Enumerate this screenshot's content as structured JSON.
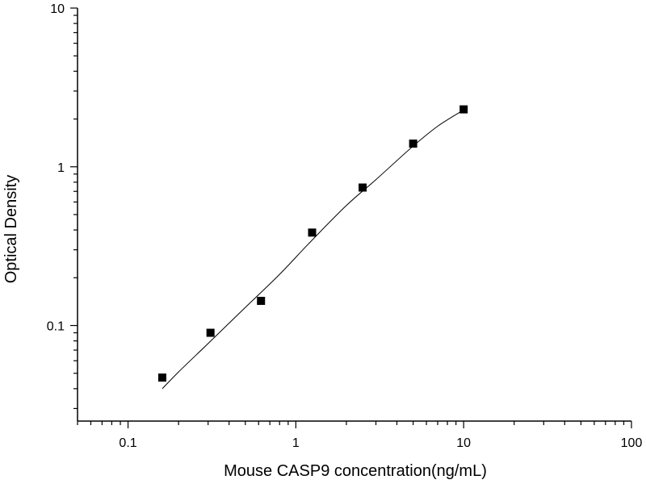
{
  "chart_data": {
    "type": "scatter",
    "title": "",
    "xlabel": "Mouse CASP9 concentration(ng/mL)",
    "ylabel": "Optical Density",
    "xscale": "log",
    "yscale": "log",
    "xlim": [
      0.05,
      100
    ],
    "ylim": [
      0.025,
      10
    ],
    "x_tick_labels": [
      {
        "value": 0.1,
        "label": "0.1"
      },
      {
        "value": 1,
        "label": "1"
      },
      {
        "value": 10,
        "label": "10"
      },
      {
        "value": 100,
        "label": "100"
      }
    ],
    "y_tick_labels": [
      {
        "value": 0.1,
        "label": "0.1"
      },
      {
        "value": 1,
        "label": "1"
      },
      {
        "value": 10,
        "label": "10"
      }
    ],
    "grid": false,
    "legend": "none",
    "marker": "square",
    "marker_color": "#000000",
    "line_color": "#000000",
    "points": [
      {
        "x": 0.16,
        "y": 0.047
      },
      {
        "x": 0.31,
        "y": 0.09
      },
      {
        "x": 0.62,
        "y": 0.143
      },
      {
        "x": 1.25,
        "y": 0.385
      },
      {
        "x": 2.5,
        "y": 0.74
      },
      {
        "x": 5,
        "y": 1.4
      },
      {
        "x": 10,
        "y": 2.3
      }
    ],
    "fit_curve": [
      {
        "x": 0.16,
        "y": 0.04
      },
      {
        "x": 0.2,
        "y": 0.051
      },
      {
        "x": 0.3,
        "y": 0.077
      },
      {
        "x": 0.5,
        "y": 0.13
      },
      {
        "x": 0.8,
        "y": 0.21
      },
      {
        "x": 1.2,
        "y": 0.33
      },
      {
        "x": 2,
        "y": 0.57
      },
      {
        "x": 3,
        "y": 0.83
      },
      {
        "x": 5,
        "y": 1.35
      },
      {
        "x": 7,
        "y": 1.8
      },
      {
        "x": 10,
        "y": 2.28
      }
    ]
  }
}
